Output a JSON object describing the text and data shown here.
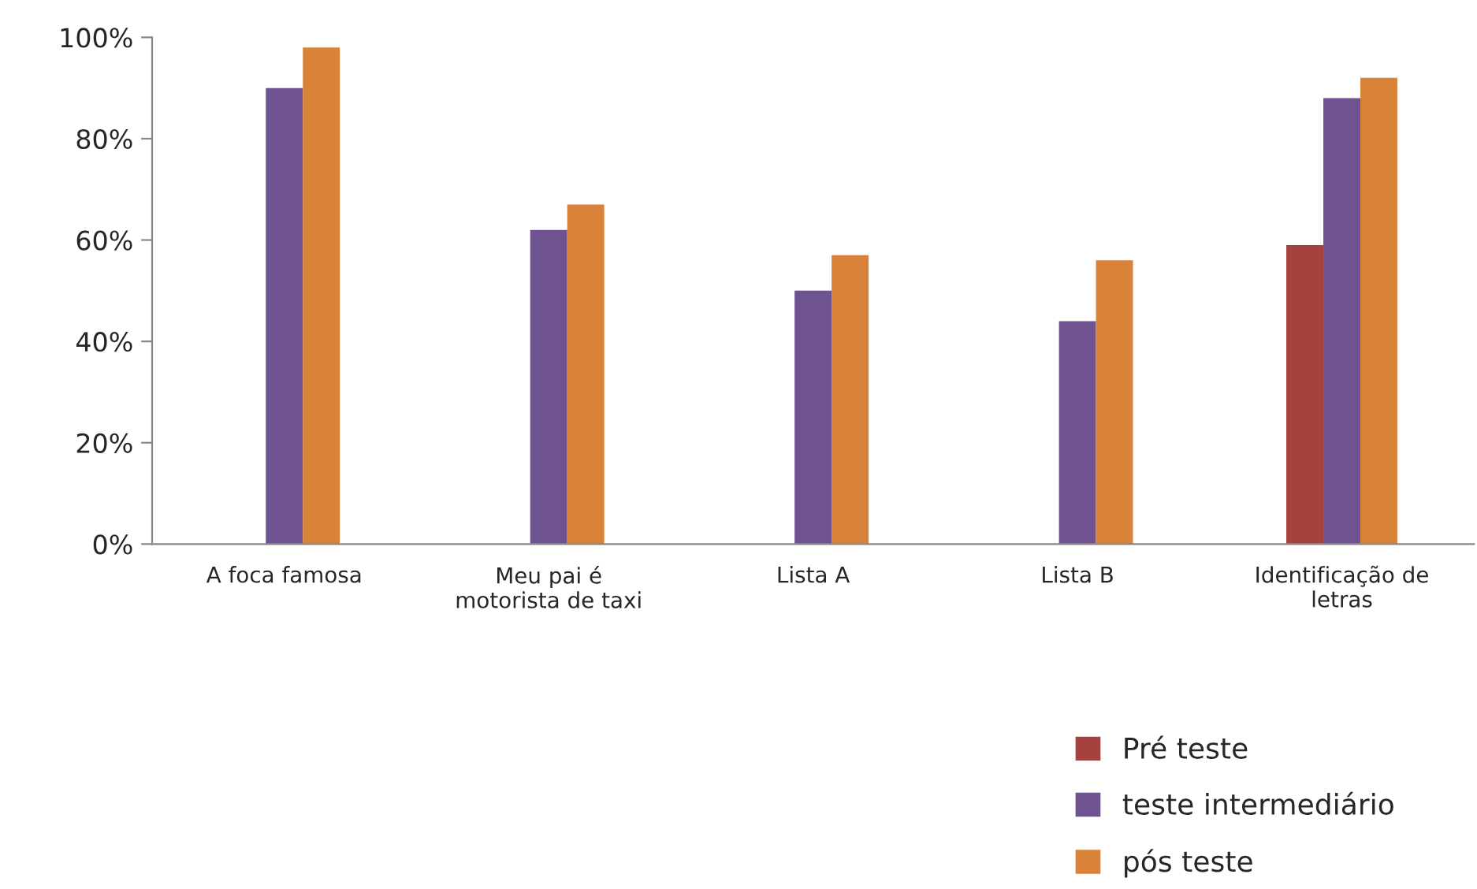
{
  "chart_data": {
    "type": "bar",
    "categories": [
      "A foca famosa",
      "Meu pai é\nmotorista de taxi",
      "Lista A",
      "Lista B",
      "Identificação de\nletras"
    ],
    "series": [
      {
        "name": "Pré teste",
        "color": "#a5413e",
        "values": [
          null,
          null,
          null,
          null,
          59
        ]
      },
      {
        "name": "teste intermediário",
        "color": "#6f5290",
        "values": [
          90,
          62,
          50,
          44,
          88
        ]
      },
      {
        "name": "pós teste",
        "color": "#d9833a",
        "values": [
          98,
          67,
          57,
          56,
          92
        ]
      }
    ],
    "ylim": [
      0,
      100
    ],
    "yticks": [
      {
        "value": 0,
        "label": "0%"
      },
      {
        "value": 20,
        "label": "20%"
      },
      {
        "value": 40,
        "label": "40%"
      },
      {
        "value": 60,
        "label": "60%"
      },
      {
        "value": 80,
        "label": "80%"
      },
      {
        "value": 100,
        "label": "100%"
      }
    ],
    "grid": false,
    "legend": "bottom right"
  }
}
